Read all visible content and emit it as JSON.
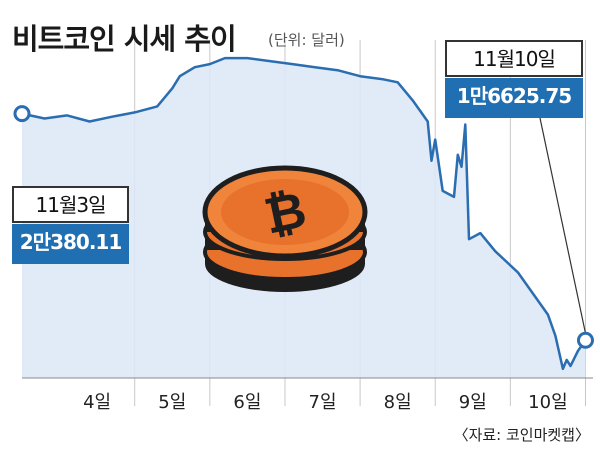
{
  "header": {
    "title": "비트코인 시세 추이",
    "unit": "(단위: 달러)"
  },
  "callouts": {
    "start_date": "11월3일",
    "start_value": "2만380.11",
    "end_date": "11월10일",
    "end_value": "1만6625.75"
  },
  "source": "〈자료: 코인마켓캡〉",
  "colors": {
    "line": "#2a6db0",
    "area": "#dce8f7",
    "accent": "#1f6fb2",
    "coin": "#e8722c"
  },
  "icon": "bitcoin-coin-stack-icon",
  "chart_data": {
    "type": "area",
    "x_ticks": [
      "4일",
      "5일",
      "6일",
      "7일",
      "8일",
      "9일",
      "10일"
    ],
    "xlim": [
      3,
      10.6
    ],
    "ylim": [
      16000,
      21600
    ],
    "grid": "vertical",
    "series": [
      {
        "x": [
          3.0,
          3.3,
          3.6,
          3.9,
          4.2,
          4.5,
          4.8,
          5.0,
          5.1,
          5.3,
          5.5,
          5.7,
          6.0,
          6.3,
          6.6,
          6.9,
          7.2,
          7.5,
          7.8,
          8.0,
          8.2,
          8.4,
          8.45,
          8.5,
          8.6,
          8.75,
          8.8,
          8.85,
          8.9,
          8.95,
          9.1,
          9.3,
          9.6,
          9.8,
          10.0,
          10.1,
          10.2,
          10.25,
          10.3,
          10.4,
          10.5
        ],
        "values": [
          20380,
          20300,
          20350,
          20250,
          20330,
          20400,
          20500,
          20800,
          21000,
          21150,
          21200,
          21300,
          21300,
          21250,
          21200,
          21150,
          21100,
          21000,
          20950,
          20900,
          20600,
          20250,
          19600,
          19950,
          19100,
          19000,
          19700,
          19500,
          20200,
          18300,
          18400,
          18100,
          17750,
          17400,
          17050,
          16700,
          16150,
          16300,
          16200,
          16450,
          16626
        ]
      }
    ]
  }
}
